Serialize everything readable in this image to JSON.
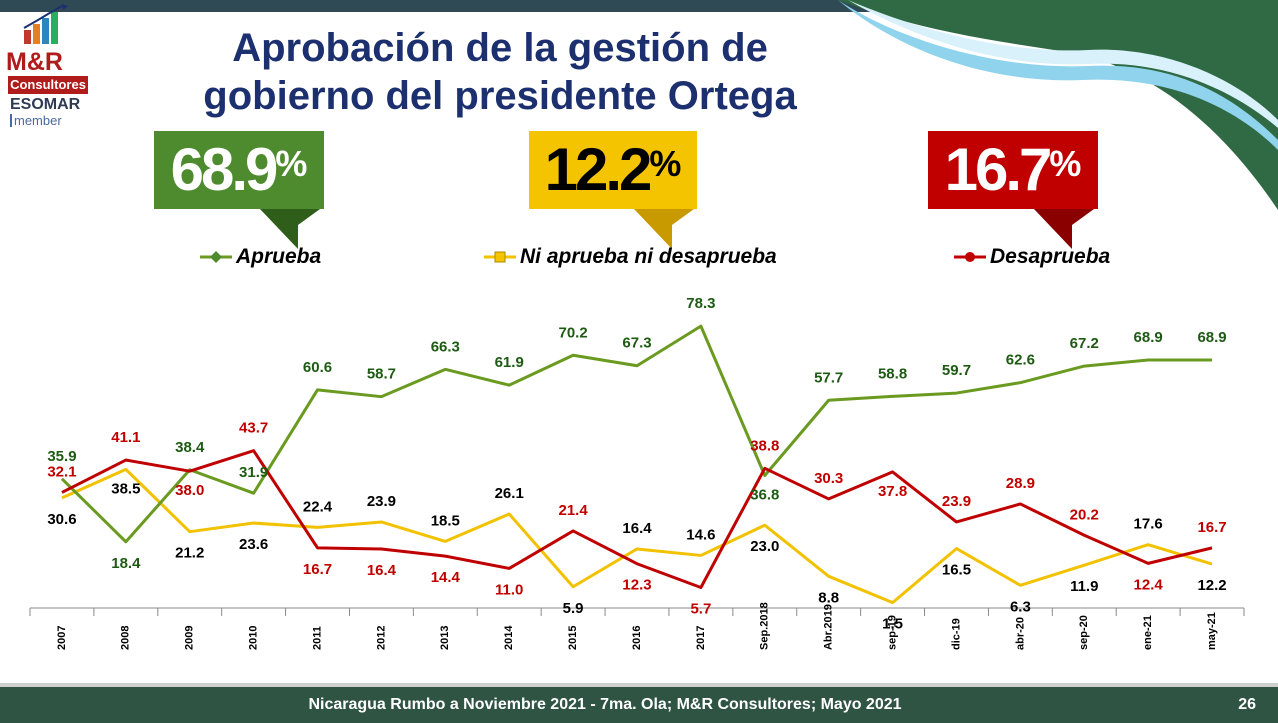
{
  "header": {
    "title_line1": "Aprobación de la gestión de",
    "title_line2": "gobierno del presidente Ortega",
    "logo": {
      "brand": "M&R",
      "sub": "Consultores",
      "assoc": "ESOMAR",
      "member": "member"
    }
  },
  "badges": [
    {
      "value": "68.9",
      "symbol": "%",
      "color": "#4e8a2e",
      "tail_color": "#2f5e1a"
    },
    {
      "value": "12.2",
      "symbol": "%",
      "color": "#f5c400",
      "tail_color": "#c99a00",
      "text_color": "#000000"
    },
    {
      "value": "16.7",
      "symbol": "%",
      "color": "#c00000",
      "tail_color": "#8a0000"
    }
  ],
  "legend": [
    {
      "label": "Aprueba",
      "color": "#6a9a1f",
      "marker": "diamond-marker"
    },
    {
      "label": "Ni aprueba ni desaprueba",
      "color": "#f2c200",
      "marker": "square-marker"
    },
    {
      "label": "Desaprueba",
      "color": "#c00000",
      "marker": "circle-marker"
    }
  ],
  "chart_data": {
    "type": "line",
    "categories": [
      "2007",
      "2008",
      "2009",
      "2010",
      "2011",
      "2012",
      "2013",
      "2014",
      "2015",
      "2016",
      "2017",
      "Sep.2018",
      "Abr.2019",
      "sep-19",
      "dic-19",
      "abr-20",
      "sep-20",
      "ene-21",
      "may-21"
    ],
    "ylim": [
      0,
      80
    ],
    "grid": false,
    "legend_position": "top",
    "series": [
      {
        "name": "Aprueba",
        "color": "#6a9a1f",
        "label_color": "#1e5a14",
        "values": [
          35.9,
          18.4,
          38.4,
          31.9,
          60.6,
          58.7,
          66.3,
          61.9,
          70.2,
          67.3,
          78.3,
          36.8,
          57.7,
          58.8,
          59.7,
          62.6,
          67.2,
          68.9,
          68.9
        ]
      },
      {
        "name": "Ni aprueba ni desaprueba",
        "color": "#f2c200",
        "label_color": "#000000",
        "values": [
          30.6,
          38.5,
          21.2,
          23.6,
          22.4,
          23.9,
          18.5,
          26.1,
          5.9,
          16.4,
          14.6,
          23.0,
          8.8,
          1.5,
          16.5,
          6.3,
          11.9,
          17.6,
          12.2
        ]
      },
      {
        "name": "Desaprueba",
        "color": "#c00000",
        "label_color": "#c00000",
        "values": [
          32.1,
          41.1,
          38.0,
          43.7,
          16.7,
          16.4,
          14.4,
          11.0,
          21.4,
          12.3,
          5.7,
          38.8,
          30.3,
          37.8,
          23.9,
          28.9,
          20.2,
          12.4,
          16.7
        ]
      }
    ]
  },
  "footer": {
    "source": "Nicaragua Rumbo a Noviembre 2021 - 7ma. Ola; M&R Consultores; Mayo 2021",
    "page": "26"
  }
}
